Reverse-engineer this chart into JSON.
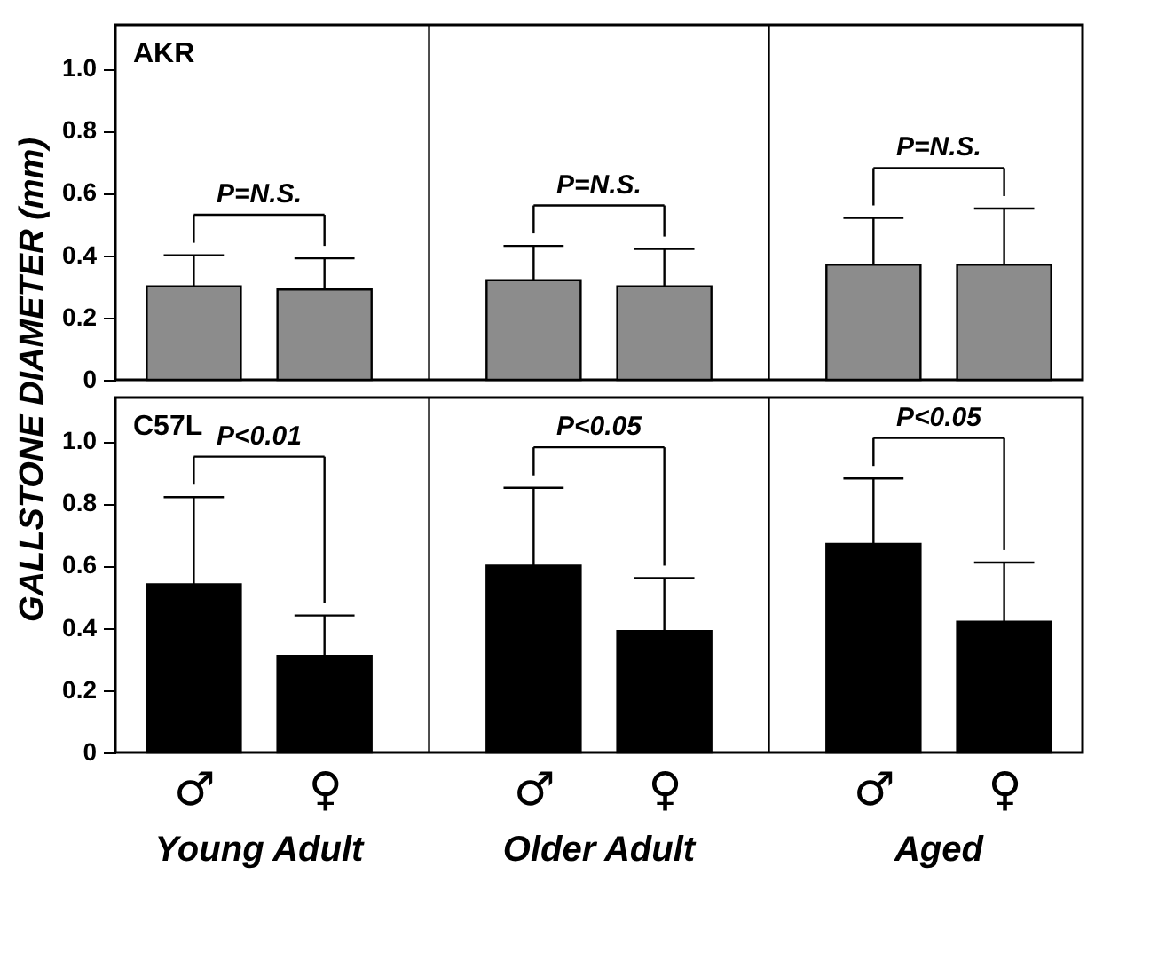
{
  "chart_data": [
    {
      "type": "bar",
      "title": "AKR",
      "ylabel": "GALLSTONE DIAMETER (mm)",
      "categories": [
        null,
        null,
        null,
        null,
        null,
        null
      ],
      "color": "#8c8c8c",
      "values": [
        0.3,
        0.29,
        0.32,
        0.3,
        0.37,
        0.37
      ],
      "errors": [
        [
          0.3,
          0.4
        ],
        [
          0.29,
          0.39
        ],
        [
          0.32,
          0.43
        ],
        [
          0.3,
          0.42
        ],
        [
          0.37,
          0.52
        ],
        [
          0.37,
          0.55
        ]
      ],
      "ylim": [
        0,
        1.14
      ],
      "yticks": [
        0,
        0.2,
        0.4,
        0.6,
        0.8,
        {
          "value": 1,
          "label": "1.0"
        }
      ],
      "tick_labels": "y",
      "grid": false,
      "annotations": [
        "P=N.S.",
        "P=N.S.",
        "P=N.S."
      ]
    },
    {
      "type": "bar",
      "title": "C57L",
      "categories": [
        "♂",
        "♀",
        "♂",
        "♀",
        "♂",
        "♀"
      ],
      "color": "#000000",
      "values": [
        0.54,
        0.31,
        0.6,
        0.39,
        0.67,
        0.42
      ],
      "errors": [
        [
          0.54,
          0.82
        ],
        [
          0.31,
          0.44
        ],
        [
          0.6,
          0.85
        ],
        [
          0.39,
          0.56
        ],
        [
          0.67,
          0.88
        ],
        [
          0.42,
          0.61
        ]
      ],
      "ylim": [
        0,
        1.14
      ],
      "yticks": [
        0,
        0.2,
        0.4,
        0.6,
        0.8,
        {
          "value": 1,
          "label": "1.0"
        }
      ],
      "grid": false,
      "annotations": [
        "P<0.01",
        "P<0.05",
        "P<0.05",
        "Young Adult",
        "Older Adult",
        "Aged"
      ]
    }
  ]
}
